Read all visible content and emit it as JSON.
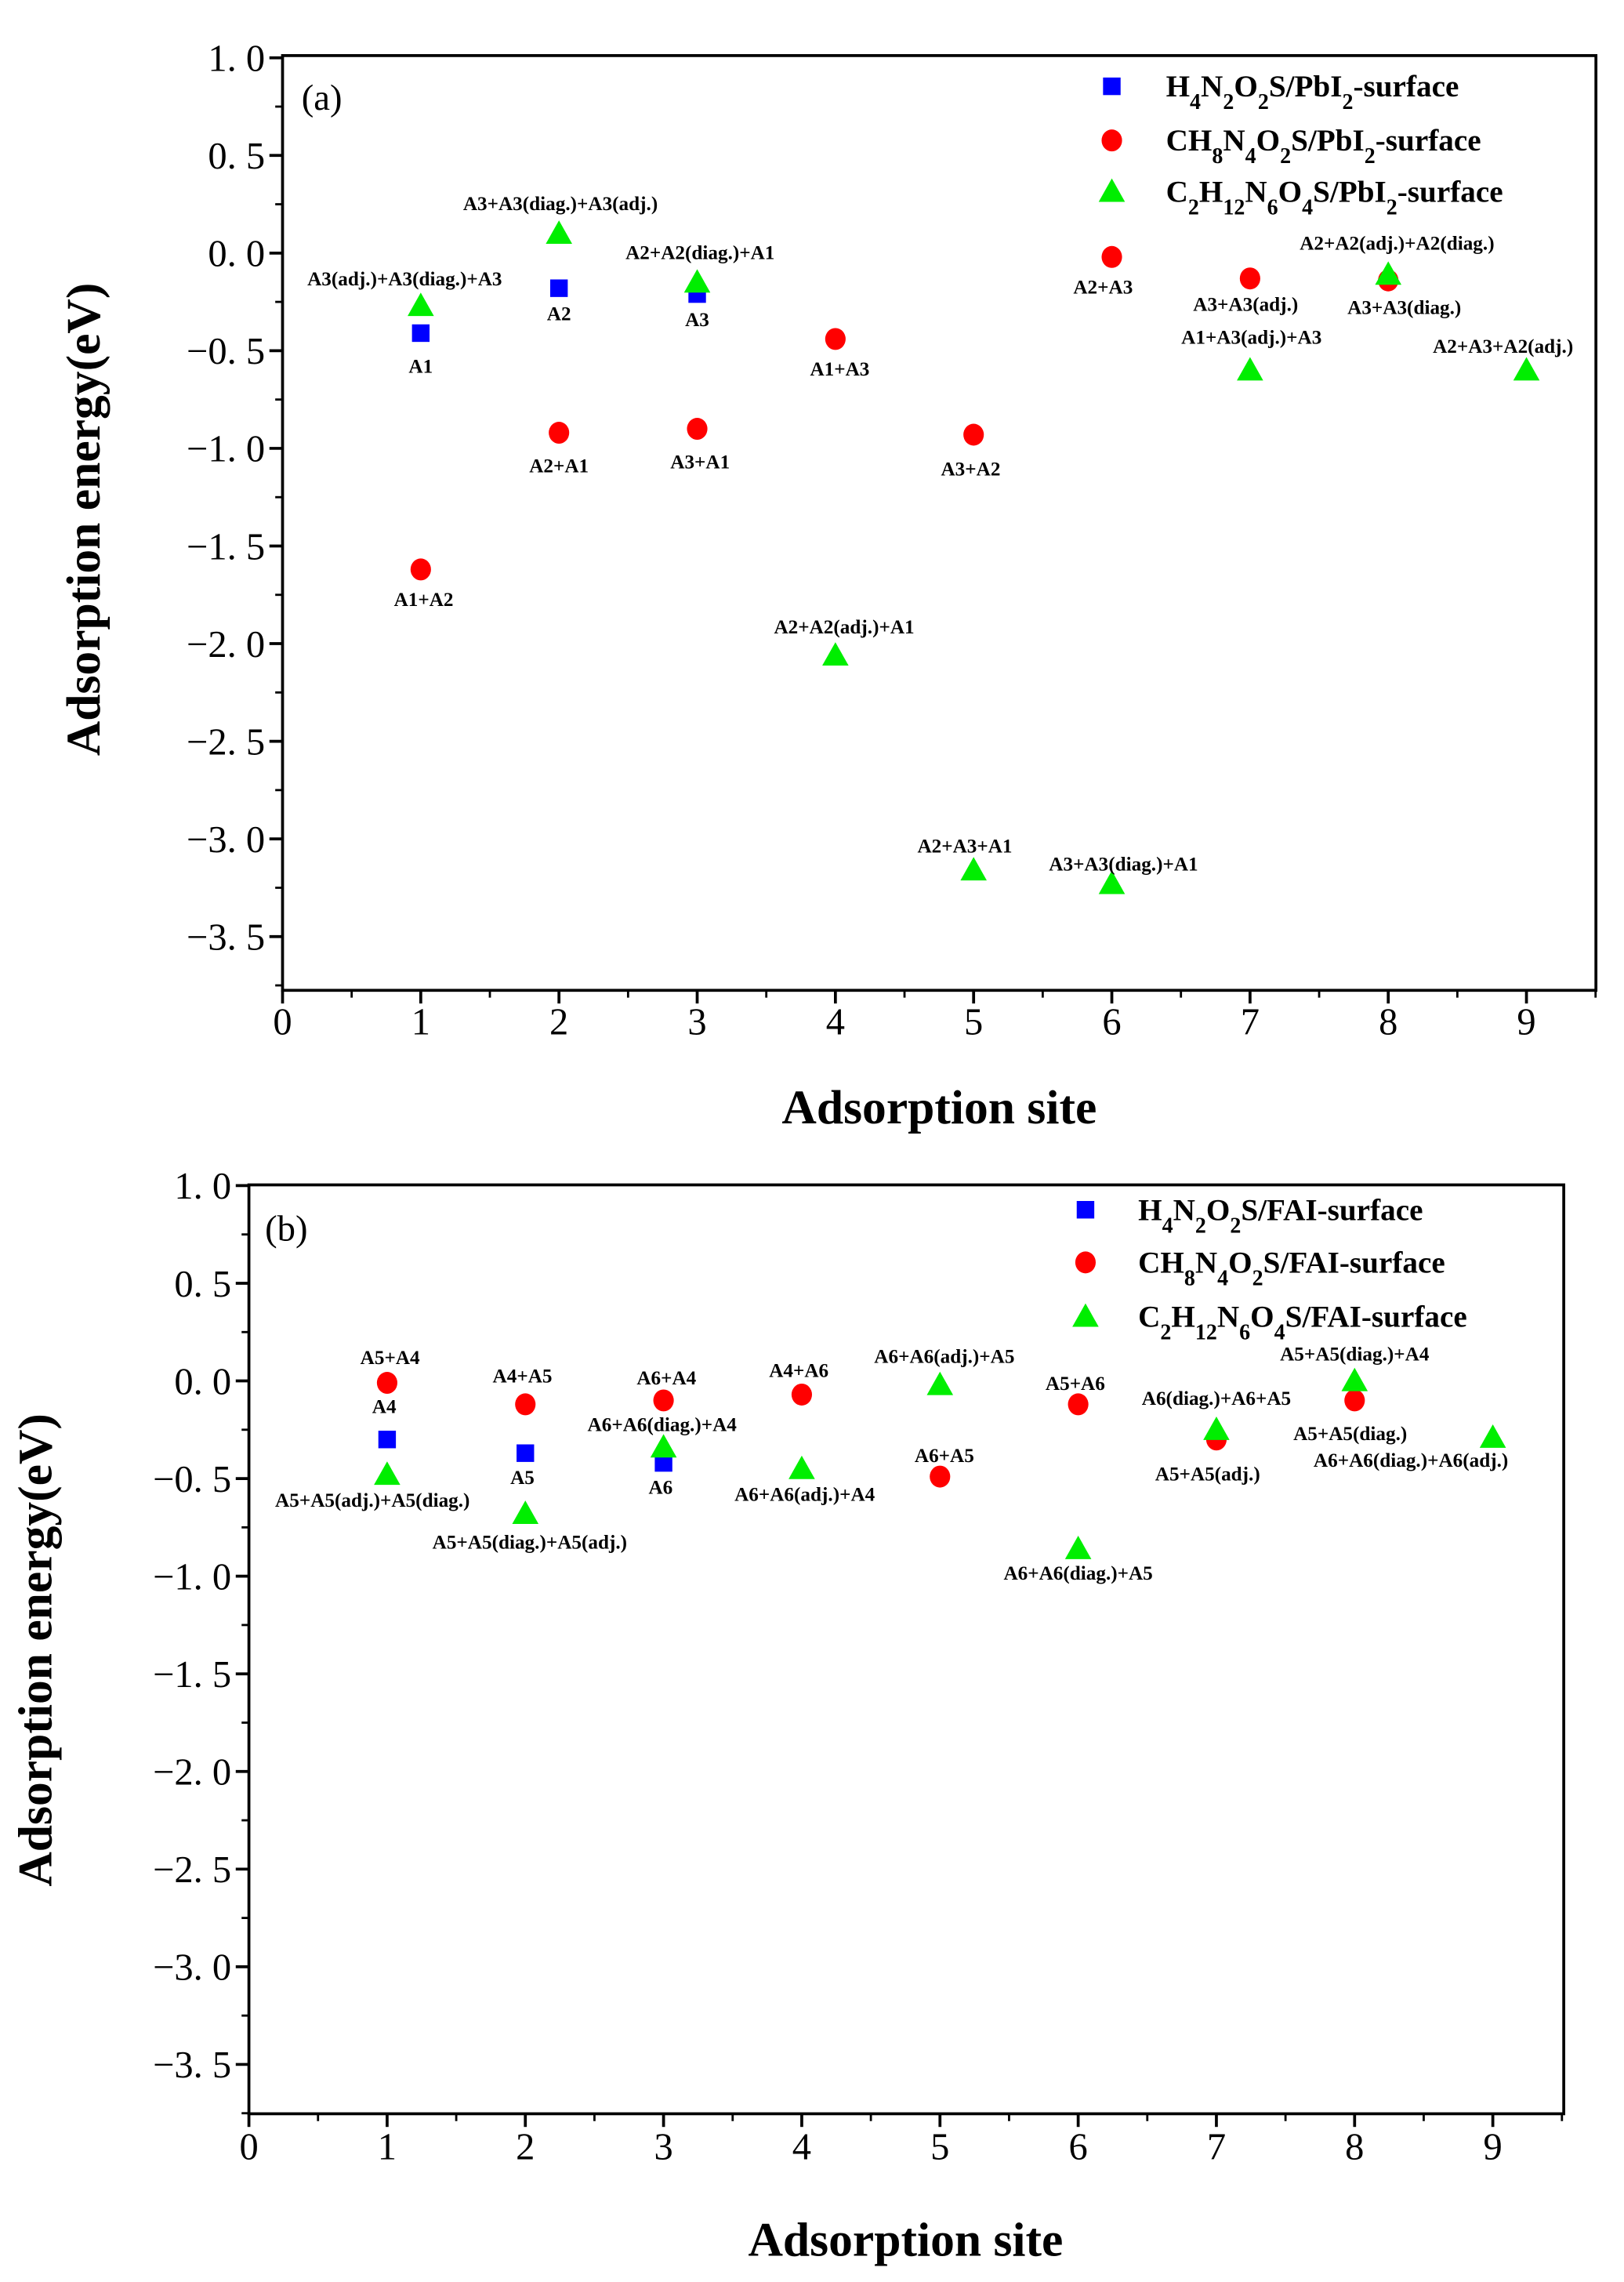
{
  "chart_data": [
    {
      "type": "scatter",
      "panel_label": "(a)",
      "xlabel": "Adsorption site",
      "ylabel": "Adsorption energy(eV)",
      "xlim": [
        0,
        9.5
      ],
      "ylim": [
        -3.75,
        1.0
      ],
      "xticks": [
        "0",
        "1",
        "2",
        "3",
        "4",
        "5",
        "6",
        "7",
        "8",
        "9"
      ],
      "yticks": [
        "1. 0",
        "0. 5",
        "0. 0",
        "−0. 5",
        "−1. 0",
        "−1. 5",
        "−2. 0",
        "−2. 5",
        "−3. 0",
        "−3. 5"
      ],
      "legend_position": "top-right",
      "series": [
        {
          "name": "H4N2O2S/PbI2-surface",
          "marker": "square",
          "color": "#0000ff",
          "points": [
            {
              "x": 1,
              "y": -0.41,
              "label": "A1"
            },
            {
              "x": 2,
              "y": -0.18,
              "label": "A2"
            },
            {
              "x": 3,
              "y": -0.21,
              "label": "A3"
            }
          ]
        },
        {
          "name": "CH8N4O2S/PbI2-surface",
          "marker": "circle",
          "color": "#ff0000",
          "points": [
            {
              "x": 1,
              "y": -1.62,
              "label": "A1+A2"
            },
            {
              "x": 2,
              "y": -0.92,
              "label": "A2+A1"
            },
            {
              "x": 3,
              "y": -0.9,
              "label": "A3+A1"
            },
            {
              "x": 4,
              "y": -0.44,
              "label": "A1+A3"
            },
            {
              "x": 5,
              "y": -0.93,
              "label": "A3+A2"
            },
            {
              "x": 6,
              "y": -0.02,
              "label": "A2+A3"
            },
            {
              "x": 7,
              "y": -0.13,
              "label": "A3+A3(adj.)"
            },
            {
              "x": 8,
              "y": -0.14,
              "label": "A3+A3(diag.)"
            }
          ]
        },
        {
          "name": "C2H12N6O4S/PbI2-surface",
          "marker": "triangle",
          "color": "#00ee00",
          "points": [
            {
              "x": 1,
              "y": -0.27,
              "label": "A3(adj.)+A3(diag.)+A3"
            },
            {
              "x": 2,
              "y": 0.1,
              "label": "A3+A3(diag.)+A3(adj.)"
            },
            {
              "x": 3,
              "y": -0.15,
              "label": "A2+A2(diag.)+A1"
            },
            {
              "x": 4,
              "y": -2.06,
              "label": "A2+A2(adj.)+A1"
            },
            {
              "x": 5,
              "y": -3.16,
              "label": "A2+A3+A1"
            },
            {
              "x": 6,
              "y": -3.23,
              "label": "A3+A3(diag.)+A1"
            },
            {
              "x": 7,
              "y": -0.6,
              "label": "A1+A3(adj.)+A3"
            },
            {
              "x": 8,
              "y": -0.11,
              "label": "A2+A2(adj.)+A2(diag.)"
            },
            {
              "x": 9,
              "y": -0.6,
              "label": "A2+A3+A2(adj.)"
            }
          ]
        }
      ]
    },
    {
      "type": "scatter",
      "panel_label": "(b)",
      "xlabel": "Adsorption site",
      "ylabel": "Adsorption energy(eV)",
      "xlim": [
        0,
        9.5
      ],
      "ylim": [
        -3.75,
        1.0
      ],
      "xticks": [
        "0",
        "1",
        "2",
        "3",
        "4",
        "5",
        "6",
        "7",
        "8",
        "9"
      ],
      "yticks": [
        "1. 0",
        "0. 5",
        "0. 0",
        "−0. 5",
        "−1. 0",
        "−1. 5",
        "−2. 0",
        "−2. 5",
        "−3. 0",
        "−3. 5"
      ],
      "legend_position": "top-right",
      "series": [
        {
          "name": "H4N2O2S/FAI-surface",
          "marker": "square",
          "color": "#0000ff",
          "points": [
            {
              "x": 1,
              "y": -0.3,
              "label": "A4"
            },
            {
              "x": 2,
              "y": -0.37,
              "label": "A5"
            },
            {
              "x": 3,
              "y": -0.42,
              "label": "A6"
            }
          ]
        },
        {
          "name": "CH8N4O2S/FAI-surface",
          "marker": "circle",
          "color": "#ff0000",
          "points": [
            {
              "x": 1,
              "y": -0.01,
              "label": "A5+A4"
            },
            {
              "x": 2,
              "y": -0.12,
              "label": "A4+A5"
            },
            {
              "x": 3,
              "y": -0.1,
              "label": "A6+A4"
            },
            {
              "x": 4,
              "y": -0.07,
              "label": "A4+A6"
            },
            {
              "x": 5,
              "y": -0.49,
              "label": "A6+A5"
            },
            {
              "x": 6,
              "y": -0.12,
              "label": "A5+A6"
            },
            {
              "x": 7,
              "y": -0.3,
              "label": "A5+A5(adj.)"
            },
            {
              "x": 8,
              "y": -0.1,
              "label": "A5+A5(diag.)"
            }
          ]
        },
        {
          "name": "C2H12N6O4S/FAI-surface",
          "marker": "triangle",
          "color": "#00ee00",
          "points": [
            {
              "x": 1,
              "y": -0.48,
              "label": "A5+A5(adj.)+A5(diag.)"
            },
            {
              "x": 2,
              "y": -0.68,
              "label": "A5+A5(diag.)+A5(adj.)"
            },
            {
              "x": 3,
              "y": -0.34,
              "label": "A6+A6(diag.)+A4"
            },
            {
              "x": 4,
              "y": -0.45,
              "label": "A6+A6(adj.)+A4"
            },
            {
              "x": 5,
              "y": -0.02,
              "label": "A6+A6(adj.)+A5"
            },
            {
              "x": 6,
              "y": -0.86,
              "label": "A6+A6(diag.)+A5"
            },
            {
              "x": 7,
              "y": -0.25,
              "label": "A6(diag.)+A6+A5"
            },
            {
              "x": 8,
              "y": 0.0,
              "label": "A5+A5(diag.)+A4"
            },
            {
              "x": 9,
              "y": -0.29,
              "label": "A6+A6(diag.)+A6(adj.)"
            }
          ]
        }
      ]
    }
  ]
}
